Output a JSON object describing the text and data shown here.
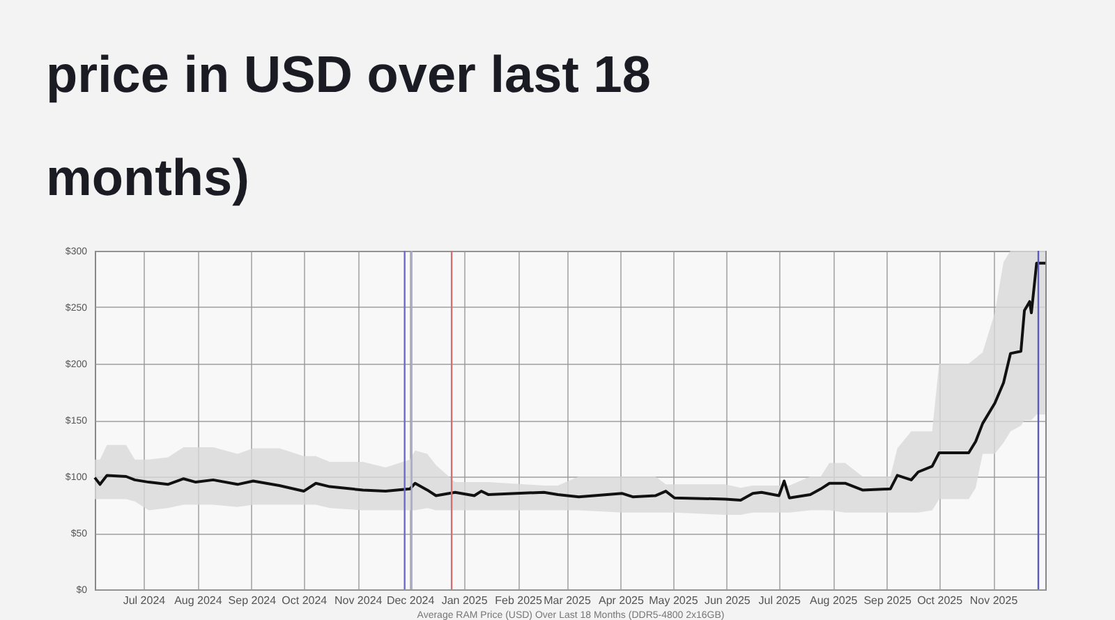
{
  "chart_data": {
    "type": "line",
    "title": "price in USD over last 18 months)",
    "xlabel": "Average RAM Price (USD) Over Last 18 Months (DDR5-4800 2x16GB)",
    "x": [
      "2024-06-03",
      "2024-06-06",
      "2024-06-10",
      "2024-06-21",
      "2024-06-26",
      "2024-07-04",
      "2024-07-15",
      "2024-07-24",
      "2024-07-31",
      "2024-08-10",
      "2024-08-24",
      "2024-09-02",
      "2024-09-17",
      "2024-10-01",
      "2024-10-08",
      "2024-10-16",
      "2024-11-04",
      "2024-11-17",
      "2024-12-01",
      "2024-12-04",
      "2024-12-11",
      "2024-12-16",
      "2024-12-27",
      "2025-01-07",
      "2025-01-11",
      "2025-01-15",
      "2025-02-16",
      "2025-02-24",
      "2025-03-08",
      "2025-04-02",
      "2025-04-08",
      "2025-04-21",
      "2025-04-27",
      "2025-05-02",
      "2025-05-31",
      "2025-06-09",
      "2025-06-16",
      "2025-06-21",
      "2025-07-01",
      "2025-07-04",
      "2025-07-07",
      "2025-07-19",
      "2025-07-25",
      "2025-07-30",
      "2025-08-08",
      "2025-08-18",
      "2025-09-03",
      "2025-09-07",
      "2025-09-15",
      "2025-09-19",
      "2025-09-27",
      "2025-10-01",
      "2025-10-18",
      "2025-10-22",
      "2025-10-26",
      "2025-11-02",
      "2025-11-07",
      "2025-11-11",
      "2025-11-17",
      "2025-11-19",
      "2025-11-22",
      "2025-11-23",
      "2025-11-26",
      "2025-12-01"
    ],
    "series": [
      {
        "color": "#111111",
        "values": [
          99,
          93,
          101,
          100,
          97,
          95,
          93,
          98,
          95,
          97,
          93,
          96,
          92,
          87,
          94,
          91,
          88,
          87,
          89,
          94,
          88,
          83,
          86,
          83,
          87,
          84,
          86,
          84,
          82,
          85,
          82,
          83,
          87,
          81,
          80,
          79,
          85,
          86,
          83,
          96,
          81,
          84,
          89,
          94,
          94,
          88,
          89,
          101,
          97,
          104,
          109,
          121,
          121,
          131,
          147,
          165,
          183,
          209,
          211,
          247,
          255,
          245,
          289,
          289
        ],
        "lower": [
          80,
          80,
          80,
          80,
          78,
          70,
          72,
          75,
          75,
          75,
          73,
          75,
          75,
          75,
          75,
          72,
          70,
          70,
          70,
          70,
          72,
          70,
          70,
          70,
          70,
          70,
          70,
          70,
          70,
          68,
          68,
          68,
          68,
          68,
          66,
          66,
          68,
          68,
          68,
          68,
          68,
          70,
          70,
          70,
          68,
          68,
          68,
          68,
          68,
          68,
          70,
          80,
          80,
          90,
          120,
          120,
          130,
          140,
          145,
          150,
          150,
          150,
          155,
          155
        ],
        "upper": [
          115,
          115,
          128,
          128,
          115,
          115,
          117,
          126,
          126,
          126,
          120,
          125,
          125,
          118,
          118,
          113,
          113,
          108,
          115,
          123,
          120,
          110,
          95,
          95,
          95,
          95,
          92,
          92,
          100,
          100,
          100,
          100,
          93,
          93,
          93,
          90,
          92,
          92,
          92,
          92,
          92,
          100,
          100,
          112,
          112,
          100,
          100,
          125,
          140,
          140,
          140,
          200,
          200,
          205,
          210,
          245,
          290,
          300,
          300,
          300,
          300,
          300,
          300,
          300
        ]
      }
    ],
    "xlim": [
      "2024-06-03",
      "2025-12-01"
    ],
    "xticks": [
      {
        "value": "2024-07-01",
        "label": "Jul 2024"
      },
      {
        "value": "2024-08-01",
        "label": "Aug 2024"
      },
      {
        "value": "2024-09-01",
        "label": "Sep 2024"
      },
      {
        "value": "2024-10-01",
        "label": "Oct 2024"
      },
      {
        "value": "2024-11-01",
        "label": "Nov 2024"
      },
      {
        "value": "2024-12-01",
        "label": "Dec 2024"
      },
      {
        "value": "2025-01-01",
        "label": "Jan 2025"
      },
      {
        "value": "2025-02-01",
        "label": "Feb 2025"
      },
      {
        "value": "2025-03-01",
        "label": "Mar 2025"
      },
      {
        "value": "2025-04-01",
        "label": "Apr 2025"
      },
      {
        "value": "2025-05-01",
        "label": "May 2025"
      },
      {
        "value": "2025-06-01",
        "label": "Jun 2025"
      },
      {
        "value": "2025-07-01",
        "label": "Jul 2025"
      },
      {
        "value": "2025-08-01",
        "label": "Aug 2025"
      },
      {
        "value": "2025-09-01",
        "label": "Sep 2025"
      },
      {
        "value": "2025-10-01",
        "label": "Oct 2025"
      },
      {
        "value": "2025-11-01",
        "label": "Nov 2025"
      }
    ],
    "ylim": [
      0,
      300
    ],
    "yticks": [
      {
        "value": 0,
        "label": "$0"
      },
      {
        "value": 50,
        "label": "$50"
      },
      {
        "value": 100,
        "label": "$100"
      },
      {
        "value": 150,
        "label": "$150"
      },
      {
        "value": 200,
        "label": "$200"
      },
      {
        "value": 250,
        "label": "$250"
      },
      {
        "value": 300,
        "label": "$300"
      }
    ],
    "grid": true,
    "ref_lines": [
      {
        "axis": "x",
        "value": "2024-11-28",
        "color": "#6a6ad0"
      },
      {
        "axis": "x",
        "value": "2024-12-02",
        "color": "#a8a8c8"
      },
      {
        "axis": "x",
        "value": "2024-12-25",
        "color": "#d07070"
      },
      {
        "axis": "x",
        "value": "2025-11-27",
        "color": "#5a5ac0"
      }
    ]
  }
}
